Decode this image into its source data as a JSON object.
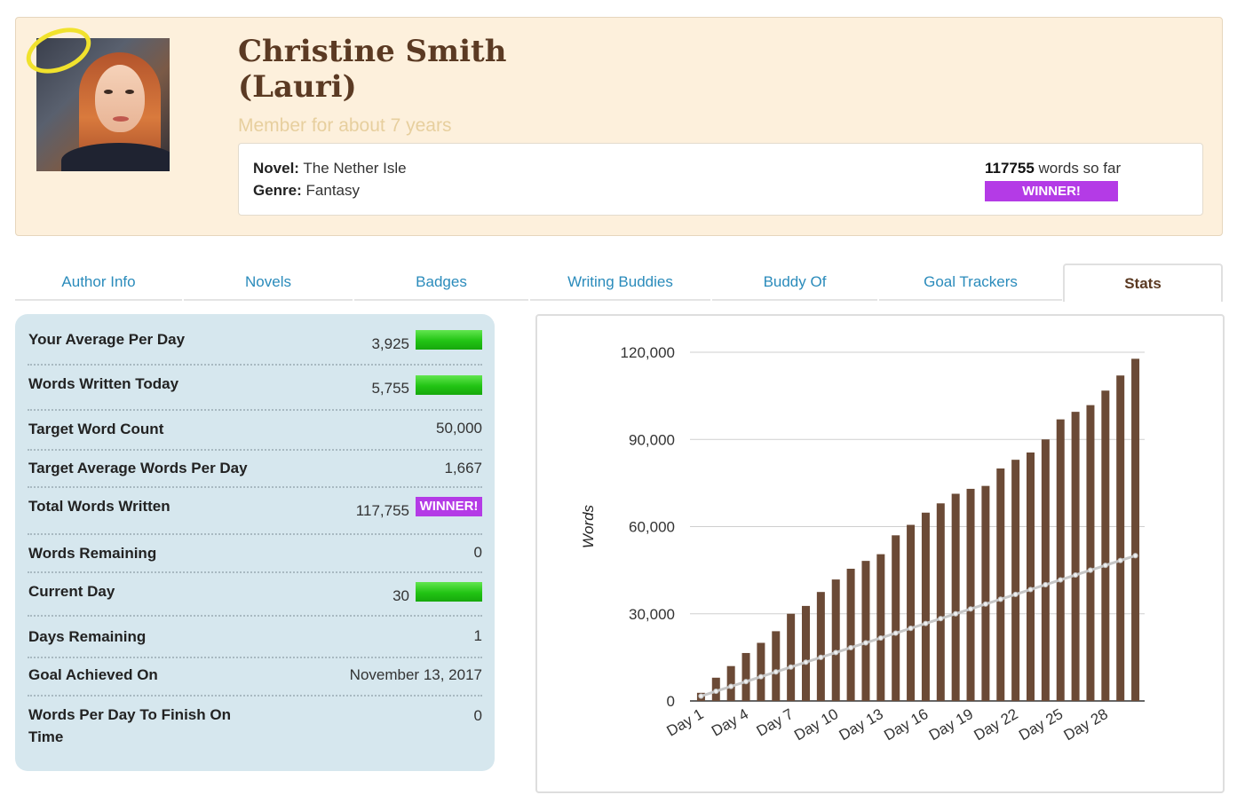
{
  "profile": {
    "name_line1": "Christine Smith",
    "name_line2": "(Lauri)",
    "member_since": "Member for about 7 years",
    "novel_label": "Novel:",
    "novel_title": "The Nether Isle",
    "genre_label": "Genre:",
    "genre": "Fantasy",
    "word_count": "117755",
    "word_count_suffix": "words so far",
    "winner_label": "WINNER!"
  },
  "tabs": [
    {
      "label": "Author Info"
    },
    {
      "label": "Novels"
    },
    {
      "label": "Badges"
    },
    {
      "label": "Writing Buddies"
    },
    {
      "label": "Buddy Of"
    },
    {
      "label": "Goal Trackers"
    },
    {
      "label": "Stats",
      "active": true
    }
  ],
  "stats": [
    {
      "label": "Your Average Per Day",
      "value": "3,925",
      "bar": true
    },
    {
      "label": "Words Written Today",
      "value": "5,755",
      "bar": true
    },
    {
      "label": "Target Word Count",
      "value": "50,000"
    },
    {
      "label": "Target Average Words Per Day",
      "value": "1,667"
    },
    {
      "label": "Total Words Written",
      "value": "117,755",
      "badge": "WINNER!"
    },
    {
      "label": "Words Remaining",
      "value": "0"
    },
    {
      "label": "Current Day",
      "value": "30",
      "bar": true
    },
    {
      "label": "Days Remaining",
      "value": "1"
    },
    {
      "label": "Goal Achieved On",
      "value": "November 13, 2017"
    },
    {
      "label": "Words Per Day To Finish On Time",
      "value": "0"
    }
  ],
  "colors": {
    "bar": "#6b4a36",
    "target_line": "#c6c6c6",
    "winner": "#b43be6",
    "progress_green": "#22c414"
  },
  "chart_data": {
    "type": "bar",
    "ylabel": "Words",
    "ylim": [
      0,
      120000
    ],
    "yticks": [
      0,
      30000,
      60000,
      90000,
      120000
    ],
    "ytick_labels": [
      "0",
      "30,000",
      "60,000",
      "90,000",
      "120,000"
    ],
    "x_tick_labels": [
      "Day 1",
      "Day 4",
      "Day 7",
      "Day 10",
      "Day 13",
      "Day 16",
      "Day 19",
      "Day 22",
      "Day 25",
      "Day 28"
    ],
    "series": [
      {
        "type": "bar",
        "values": [
          2800,
          8000,
          12000,
          16500,
          20000,
          24000,
          30000,
          32700,
          37500,
          41800,
          45500,
          48200,
          50500,
          57000,
          60600,
          64800,
          68000,
          71300,
          73000,
          74000,
          80000,
          83000,
          85500,
          90000,
          96900,
          99500,
          101800,
          106800,
          112000,
          117755
        ]
      },
      {
        "type": "line",
        "values": [
          1667,
          3333,
          5000,
          6667,
          8333,
          10000,
          11667,
          13333,
          15000,
          16667,
          18333,
          20000,
          21667,
          23333,
          25000,
          26667,
          28333,
          30000,
          31667,
          33333,
          35000,
          36667,
          38333,
          40000,
          41667,
          43333,
          45000,
          46667,
          48333,
          50000
        ]
      }
    ]
  }
}
